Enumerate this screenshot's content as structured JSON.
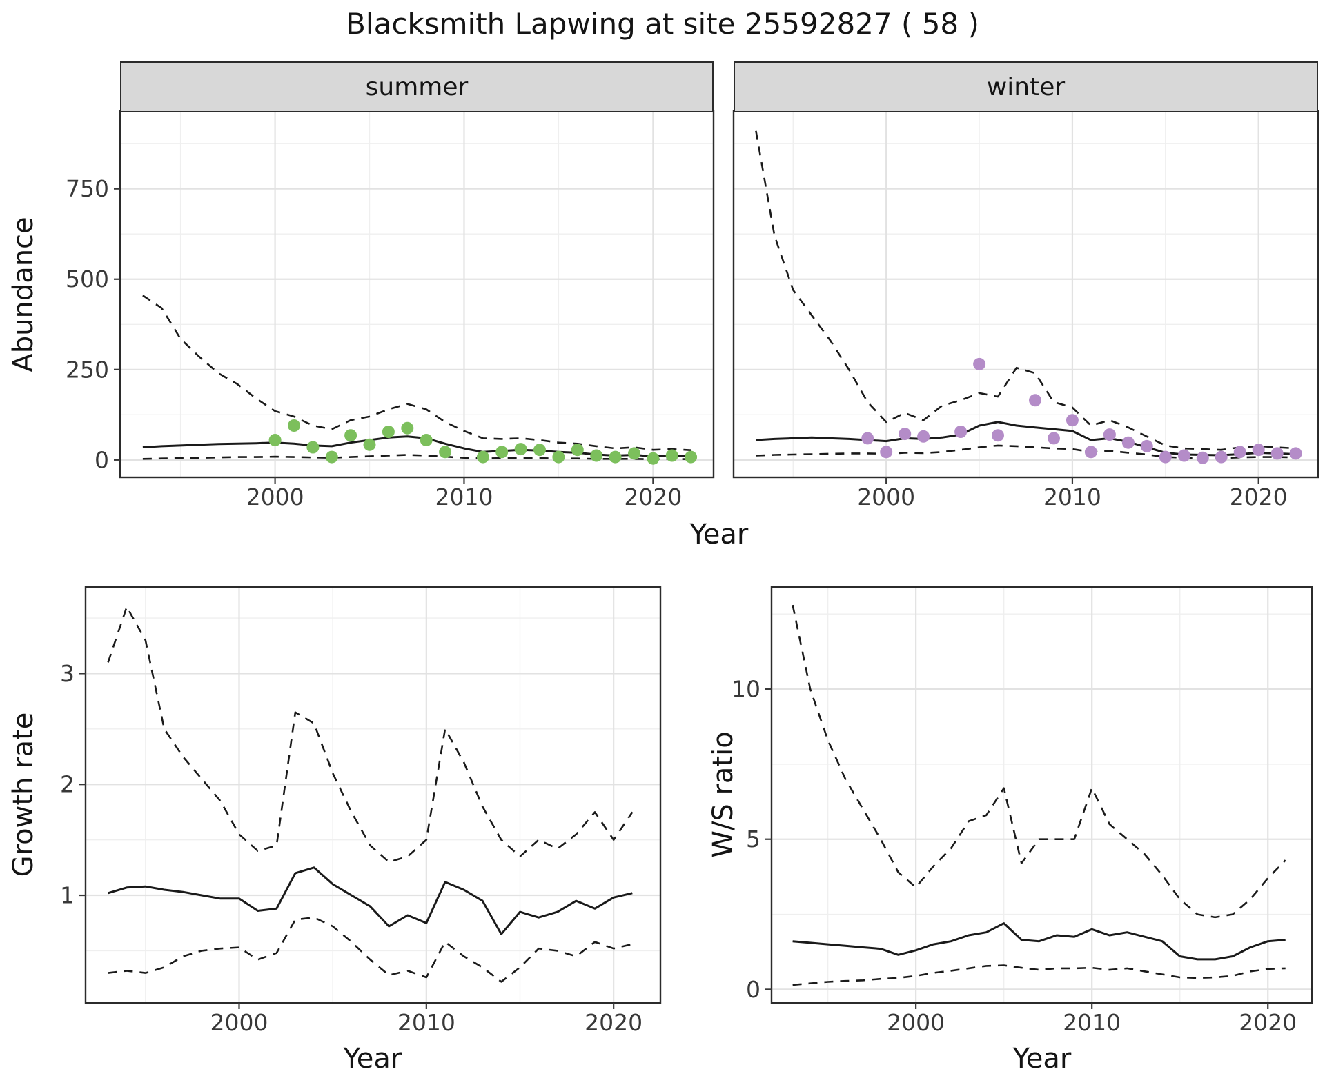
{
  "title": "Blacksmith Lapwing at site 25592827 ( 58 )",
  "labels": {
    "year": "Year",
    "abundance": "Abundance",
    "growth_rate": "Growth rate",
    "ws_ratio": "W/S ratio"
  },
  "facets": [
    {
      "label": "summer"
    },
    {
      "label": "winter"
    }
  ],
  "colors": {
    "summer_points": "#7cbf5c",
    "winter_points": "#b48cc8",
    "line": "#1a1a1a",
    "grid_major": "#e2e2e2",
    "grid_minor": "#efefef",
    "strip_bg": "#d8d8d8",
    "panel_border": "#2b2b2b",
    "tick_text": "#383838"
  },
  "chart_data": [
    {
      "id": "abundance-summer",
      "type": "line",
      "facet_label": "summer",
      "xlabel": "Year",
      "ylabel": "Abundance",
      "xlim": [
        1991.8,
        2023.2
      ],
      "ylim": [
        -48,
        965
      ],
      "xticks": [
        2000,
        2010,
        2020
      ],
      "yticks": [
        0,
        250,
        500,
        750
      ],
      "show_ytick_labels": true,
      "x": [
        1993,
        1994,
        1995,
        1996,
        1997,
        1998,
        1999,
        2000,
        2001,
        2002,
        2003,
        2004,
        2005,
        2006,
        2007,
        2008,
        2009,
        2010,
        2011,
        2012,
        2013,
        2014,
        2015,
        2016,
        2017,
        2018,
        2019,
        2020,
        2021,
        2022
      ],
      "series": [
        {
          "name": "upper_ci",
          "style": "dashed",
          "values": [
            455,
            420,
            335,
            285,
            240,
            210,
            170,
            135,
            120,
            95,
            85,
            110,
            120,
            140,
            155,
            140,
            105,
            80,
            60,
            58,
            60,
            55,
            48,
            45,
            38,
            32,
            35,
            28,
            30,
            27
          ]
        },
        {
          "name": "median",
          "style": "solid",
          "values": [
            35,
            38,
            40,
            42,
            44,
            45,
            46,
            48,
            45,
            40,
            38,
            48,
            55,
            62,
            65,
            60,
            45,
            32,
            22,
            25,
            28,
            26,
            22,
            20,
            15,
            12,
            14,
            10,
            12,
            10
          ]
        },
        {
          "name": "lower_ci",
          "style": "dashed",
          "values": [
            3,
            4,
            5,
            6,
            7,
            8,
            8,
            9,
            8,
            7,
            6,
            8,
            10,
            12,
            14,
            12,
            9,
            6,
            4,
            5,
            5,
            5,
            4,
            4,
            3,
            3,
            3,
            2,
            3,
            2
          ]
        }
      ],
      "points": {
        "name": "observed-counts",
        "color_key": "summer_points",
        "x": [
          2000,
          2001,
          2002,
          2003,
          2004,
          2005,
          2006,
          2007,
          2008,
          2009,
          2011,
          2012,
          2013,
          2014,
          2015,
          2016,
          2017,
          2018,
          2019,
          2020,
          2021,
          2022
        ],
        "y": [
          55,
          95,
          35,
          8,
          68,
          42,
          78,
          88,
          55,
          22,
          8,
          22,
          30,
          28,
          8,
          28,
          12,
          8,
          18,
          4,
          12,
          8
        ]
      }
    },
    {
      "id": "abundance-winter",
      "type": "line",
      "facet_label": "winter",
      "xlabel": "Year",
      "ylabel": "Abundance",
      "xlim": [
        1991.8,
        2023.2
      ],
      "ylim": [
        -48,
        965
      ],
      "xticks": [
        2000,
        2010,
        2020
      ],
      "yticks": [
        0,
        250,
        500,
        750
      ],
      "show_ytick_labels": false,
      "x": [
        1993,
        1994,
        1995,
        1996,
        1997,
        1998,
        1999,
        2000,
        2001,
        2002,
        2003,
        2004,
        2005,
        2006,
        2007,
        2008,
        2009,
        2010,
        2011,
        2012,
        2013,
        2014,
        2015,
        2016,
        2017,
        2018,
        2019,
        2020,
        2021,
        2022
      ],
      "series": [
        {
          "name": "upper_ci",
          "style": "dashed",
          "values": [
            910,
            620,
            470,
            400,
            330,
            250,
            160,
            105,
            130,
            110,
            150,
            165,
            185,
            175,
            255,
            240,
            160,
            145,
            95,
            110,
            90,
            65,
            40,
            32,
            30,
            28,
            35,
            38,
            35,
            32
          ]
        },
        {
          "name": "median",
          "style": "solid",
          "values": [
            55,
            58,
            60,
            62,
            60,
            58,
            55,
            52,
            60,
            58,
            62,
            70,
            95,
            105,
            95,
            90,
            85,
            80,
            55,
            60,
            50,
            35,
            20,
            15,
            14,
            13,
            16,
            20,
            18,
            16
          ]
        },
        {
          "name": "lower_ci",
          "style": "dashed",
          "values": [
            12,
            14,
            15,
            16,
            17,
            18,
            18,
            17,
            20,
            19,
            22,
            28,
            35,
            40,
            38,
            35,
            32,
            30,
            22,
            25,
            20,
            15,
            8,
            6,
            6,
            5,
            7,
            8,
            8,
            7
          ]
        }
      ],
      "points": {
        "name": "observed-counts",
        "color_key": "winter_points",
        "x": [
          1999,
          2000,
          2001,
          2002,
          2004,
          2005,
          2006,
          2008,
          2009,
          2010,
          2011,
          2012,
          2013,
          2014,
          2015,
          2016,
          2017,
          2018,
          2019,
          2020,
          2021,
          2022
        ],
        "y": [
          60,
          22,
          72,
          65,
          78,
          265,
          68,
          165,
          60,
          110,
          22,
          70,
          48,
          38,
          8,
          12,
          6,
          8,
          22,
          28,
          18,
          18
        ]
      }
    },
    {
      "id": "growth-rate",
      "type": "line",
      "xlabel": "Year",
      "ylabel": "Growth rate",
      "xlim": [
        1991.8,
        2022.5
      ],
      "ylim": [
        0.03,
        3.78
      ],
      "xticks": [
        2000,
        2010,
        2020
      ],
      "yticks": [
        1,
        2,
        3
      ],
      "show_ytick_labels": true,
      "x": [
        1993,
        1994,
        1995,
        1996,
        1997,
        1998,
        1999,
        2000,
        2001,
        2002,
        2003,
        2004,
        2005,
        2006,
        2007,
        2008,
        2009,
        2010,
        2011,
        2012,
        2013,
        2014,
        2015,
        2016,
        2017,
        2018,
        2019,
        2020,
        2021
      ],
      "series": [
        {
          "name": "upper_ci",
          "style": "dashed",
          "values": [
            3.1,
            3.6,
            3.3,
            2.5,
            2.25,
            2.05,
            1.85,
            1.55,
            1.4,
            1.45,
            2.65,
            2.55,
            2.1,
            1.75,
            1.45,
            1.3,
            1.35,
            1.5,
            2.5,
            2.2,
            1.8,
            1.5,
            1.35,
            1.5,
            1.42,
            1.55,
            1.75,
            1.5,
            1.75
          ]
        },
        {
          "name": "median",
          "style": "solid",
          "values": [
            1.02,
            1.07,
            1.08,
            1.05,
            1.03,
            1.0,
            0.97,
            0.97,
            0.86,
            0.88,
            1.2,
            1.25,
            1.1,
            1.0,
            0.9,
            0.72,
            0.82,
            0.75,
            1.12,
            1.05,
            0.95,
            0.65,
            0.85,
            0.8,
            0.85,
            0.95,
            0.88,
            0.98,
            1.02
          ]
        },
        {
          "name": "lower_ci",
          "style": "dashed",
          "values": [
            0.3,
            0.32,
            0.3,
            0.35,
            0.45,
            0.5,
            0.52,
            0.53,
            0.42,
            0.48,
            0.78,
            0.8,
            0.72,
            0.58,
            0.42,
            0.28,
            0.32,
            0.26,
            0.58,
            0.45,
            0.35,
            0.22,
            0.35,
            0.52,
            0.5,
            0.45,
            0.58,
            0.52,
            0.56
          ]
        }
      ]
    },
    {
      "id": "ws-ratio",
      "type": "line",
      "xlabel": "Year",
      "ylabel": "W/S ratio",
      "xlim": [
        1991.8,
        2022.5
      ],
      "ylim": [
        -0.45,
        13.4
      ],
      "xticks": [
        2000,
        2010,
        2020
      ],
      "yticks": [
        0,
        5,
        10
      ],
      "show_ytick_labels": true,
      "x": [
        1993,
        1994,
        1995,
        1996,
        1997,
        1998,
        1999,
        2000,
        2001,
        2002,
        2003,
        2004,
        2005,
        2006,
        2007,
        2008,
        2009,
        2010,
        2011,
        2012,
        2013,
        2014,
        2015,
        2016,
        2017,
        2018,
        2019,
        2020,
        2021
      ],
      "series": [
        {
          "name": "upper_ci",
          "style": "dashed",
          "values": [
            12.8,
            10.0,
            8.3,
            7.0,
            6.0,
            5.0,
            3.9,
            3.4,
            4.1,
            4.7,
            5.6,
            5.8,
            6.7,
            4.2,
            5.0,
            5.0,
            5.0,
            6.7,
            5.5,
            5.0,
            4.5,
            3.8,
            3.0,
            2.5,
            2.4,
            2.5,
            3.0,
            3.7,
            4.3
          ]
        },
        {
          "name": "median",
          "style": "solid",
          "values": [
            1.6,
            1.55,
            1.5,
            1.45,
            1.4,
            1.35,
            1.15,
            1.3,
            1.5,
            1.6,
            1.8,
            1.9,
            2.2,
            1.65,
            1.6,
            1.8,
            1.75,
            2.0,
            1.8,
            1.9,
            1.75,
            1.6,
            1.1,
            1.0,
            1.0,
            1.1,
            1.4,
            1.6,
            1.65
          ]
        },
        {
          "name": "lower_ci",
          "style": "dashed",
          "values": [
            0.15,
            0.2,
            0.25,
            0.28,
            0.3,
            0.35,
            0.38,
            0.45,
            0.55,
            0.62,
            0.7,
            0.78,
            0.8,
            0.72,
            0.65,
            0.7,
            0.7,
            0.72,
            0.65,
            0.7,
            0.6,
            0.5,
            0.4,
            0.38,
            0.4,
            0.45,
            0.6,
            0.68,
            0.7
          ]
        }
      ]
    }
  ]
}
